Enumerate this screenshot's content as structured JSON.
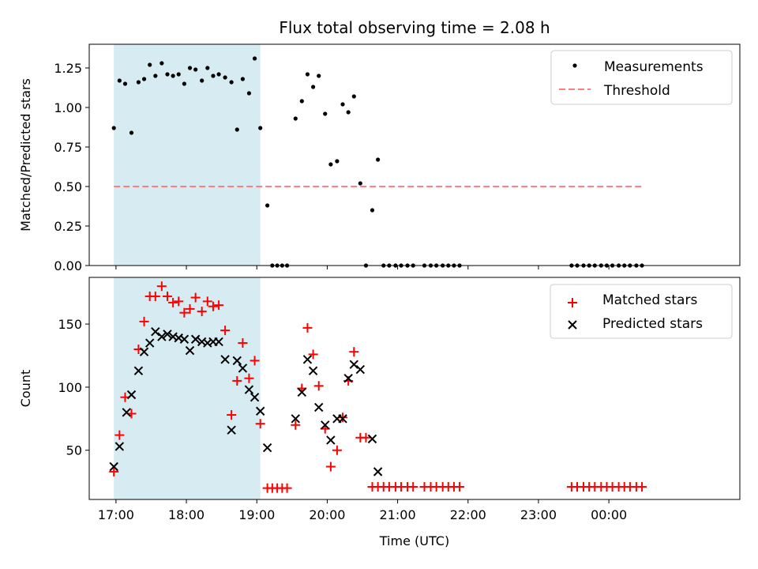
{
  "chart_data": {
    "type": "scatter",
    "title": "Flux total observing time = 2.08 h",
    "xlabel": "Time (UTC)",
    "x_tick_labels": [
      "17:00",
      "18:00",
      "19:00",
      "20:00",
      "21:00",
      "22:00",
      "23:00",
      "00:00"
    ],
    "x_range_hours": [
      16.62,
      25.86
    ],
    "shaded_interval_hours": [
      16.97,
      19.05
    ],
    "top_panel": {
      "ylabel": "Matched/Predicted stars",
      "ylim": [
        0,
        1.4
      ],
      "y_tick_labels": [
        "0.00",
        "0.25",
        "0.50",
        "0.75",
        "1.00",
        "1.25"
      ],
      "legend": {
        "position": "top-right",
        "entries": [
          "Measurements",
          "Threshold"
        ]
      },
      "threshold": {
        "name": "Threshold",
        "value": 0.5,
        "x_start": 16.97,
        "x_end": 24.47,
        "color": "#ff7f7f"
      },
      "measurements": {
        "name": "Measurements",
        "color": "#000000",
        "x": [
          16.97,
          17.05,
          17.13,
          17.22,
          17.32,
          17.4,
          17.48,
          17.56,
          17.65,
          17.73,
          17.81,
          17.89,
          17.97,
          18.05,
          18.13,
          18.22,
          18.3,
          18.38,
          18.46,
          18.55,
          18.64,
          18.72,
          18.8,
          18.89,
          18.97,
          19.05,
          19.15,
          19.22,
          19.29,
          19.36,
          19.43,
          19.55,
          19.64,
          19.72,
          19.8,
          19.88,
          19.97,
          20.05,
          20.14,
          20.22,
          20.3,
          20.38,
          20.47,
          20.55,
          20.64,
          20.72,
          20.8,
          20.88,
          20.97,
          21.05,
          21.14,
          21.22,
          21.38,
          21.47,
          21.55,
          21.64,
          21.72,
          21.8,
          21.88,
          23.47,
          23.55,
          23.64,
          23.72,
          23.8,
          23.89,
          23.97,
          24.05,
          24.14,
          24.22,
          24.3,
          24.39,
          24.47
        ],
        "y": [
          0.87,
          1.17,
          1.15,
          0.84,
          1.16,
          1.18,
          1.27,
          1.2,
          1.28,
          1.21,
          1.2,
          1.21,
          1.15,
          1.25,
          1.24,
          1.17,
          1.25,
          1.2,
          1.21,
          1.19,
          1.16,
          0.86,
          1.18,
          1.09,
          1.31,
          0.87,
          0.38,
          0,
          0,
          0,
          0,
          0.93,
          1.04,
          1.21,
          1.13,
          1.2,
          0.96,
          0.64,
          0.66,
          1.02,
          0.97,
          1.07,
          0.52,
          0,
          0.35,
          0.67,
          0,
          0,
          0,
          0,
          0,
          0,
          0,
          0,
          0,
          0,
          0,
          0,
          0,
          0,
          0,
          0,
          0,
          0,
          0,
          0,
          0,
          0,
          0,
          0,
          0,
          0
        ]
      }
    },
    "bottom_panel": {
      "ylabel": "Count",
      "ylim": [
        11,
        187
      ],
      "y_tick_labels": [
        "50",
        "100",
        "150"
      ],
      "legend": {
        "position": "top-right",
        "entries": [
          "Matched stars",
          "Predicted stars"
        ]
      },
      "matched": {
        "name": "Matched stars",
        "color": "#ff0000",
        "x": [
          16.97,
          17.05,
          17.13,
          17.22,
          17.32,
          17.4,
          17.48,
          17.56,
          17.65,
          17.73,
          17.81,
          17.89,
          17.97,
          18.05,
          18.13,
          18.22,
          18.3,
          18.38,
          18.46,
          18.55,
          18.64,
          18.72,
          18.8,
          18.89,
          18.97,
          19.05,
          19.15,
          19.22,
          19.29,
          19.36,
          19.43,
          19.55,
          19.64,
          19.72,
          19.8,
          19.88,
          19.97,
          20.05,
          20.14,
          20.22,
          20.3,
          20.38,
          20.47,
          20.55,
          20.64,
          20.72,
          20.8,
          20.88,
          20.97,
          21.05,
          21.14,
          21.22,
          21.38,
          21.47,
          21.55,
          21.64,
          21.72,
          21.8,
          21.88,
          23.47,
          23.55,
          23.64,
          23.72,
          23.8,
          23.89,
          23.97,
          24.05,
          24.14,
          24.22,
          24.3,
          24.39,
          24.47
        ],
        "y": [
          33,
          62,
          92,
          79,
          130,
          152,
          172,
          172,
          180,
          172,
          167,
          168,
          159,
          162,
          171,
          160,
          168,
          164,
          165,
          145,
          78,
          105,
          135,
          107,
          121,
          71,
          20,
          20,
          20,
          20,
          20,
          70,
          99,
          147,
          126,
          101,
          67,
          37,
          50,
          76,
          105,
          128,
          60,
          60,
          21,
          21,
          21,
          21,
          21,
          21,
          21,
          21,
          21,
          21,
          21,
          21,
          21,
          21,
          21,
          21,
          21,
          21,
          21,
          21,
          21,
          21,
          21,
          21,
          21,
          21,
          21,
          21
        ]
      },
      "predicted": {
        "name": "Predicted stars",
        "color": "#000000",
        "x": [
          16.97,
          17.05,
          17.15,
          17.22,
          17.32,
          17.4,
          17.48,
          17.56,
          17.65,
          17.73,
          17.81,
          17.89,
          17.97,
          18.05,
          18.13,
          18.22,
          18.3,
          18.38,
          18.46,
          18.55,
          18.64,
          18.72,
          18.8,
          18.89,
          18.97,
          19.05,
          19.15,
          19.55,
          19.64,
          19.72,
          19.8,
          19.88,
          19.97,
          20.05,
          20.14,
          20.22,
          20.3,
          20.38,
          20.47,
          20.64,
          20.72
        ],
        "y": [
          37,
          53,
          80,
          94,
          113,
          128,
          135,
          144,
          140,
          142,
          140,
          139,
          138,
          129,
          138,
          136,
          135,
          136,
          136,
          122,
          66,
          121,
          115,
          98,
          92,
          81,
          52,
          75,
          96,
          122,
          113,
          84,
          70,
          58,
          75,
          75,
          107,
          118,
          114,
          59,
          33
        ]
      }
    }
  }
}
